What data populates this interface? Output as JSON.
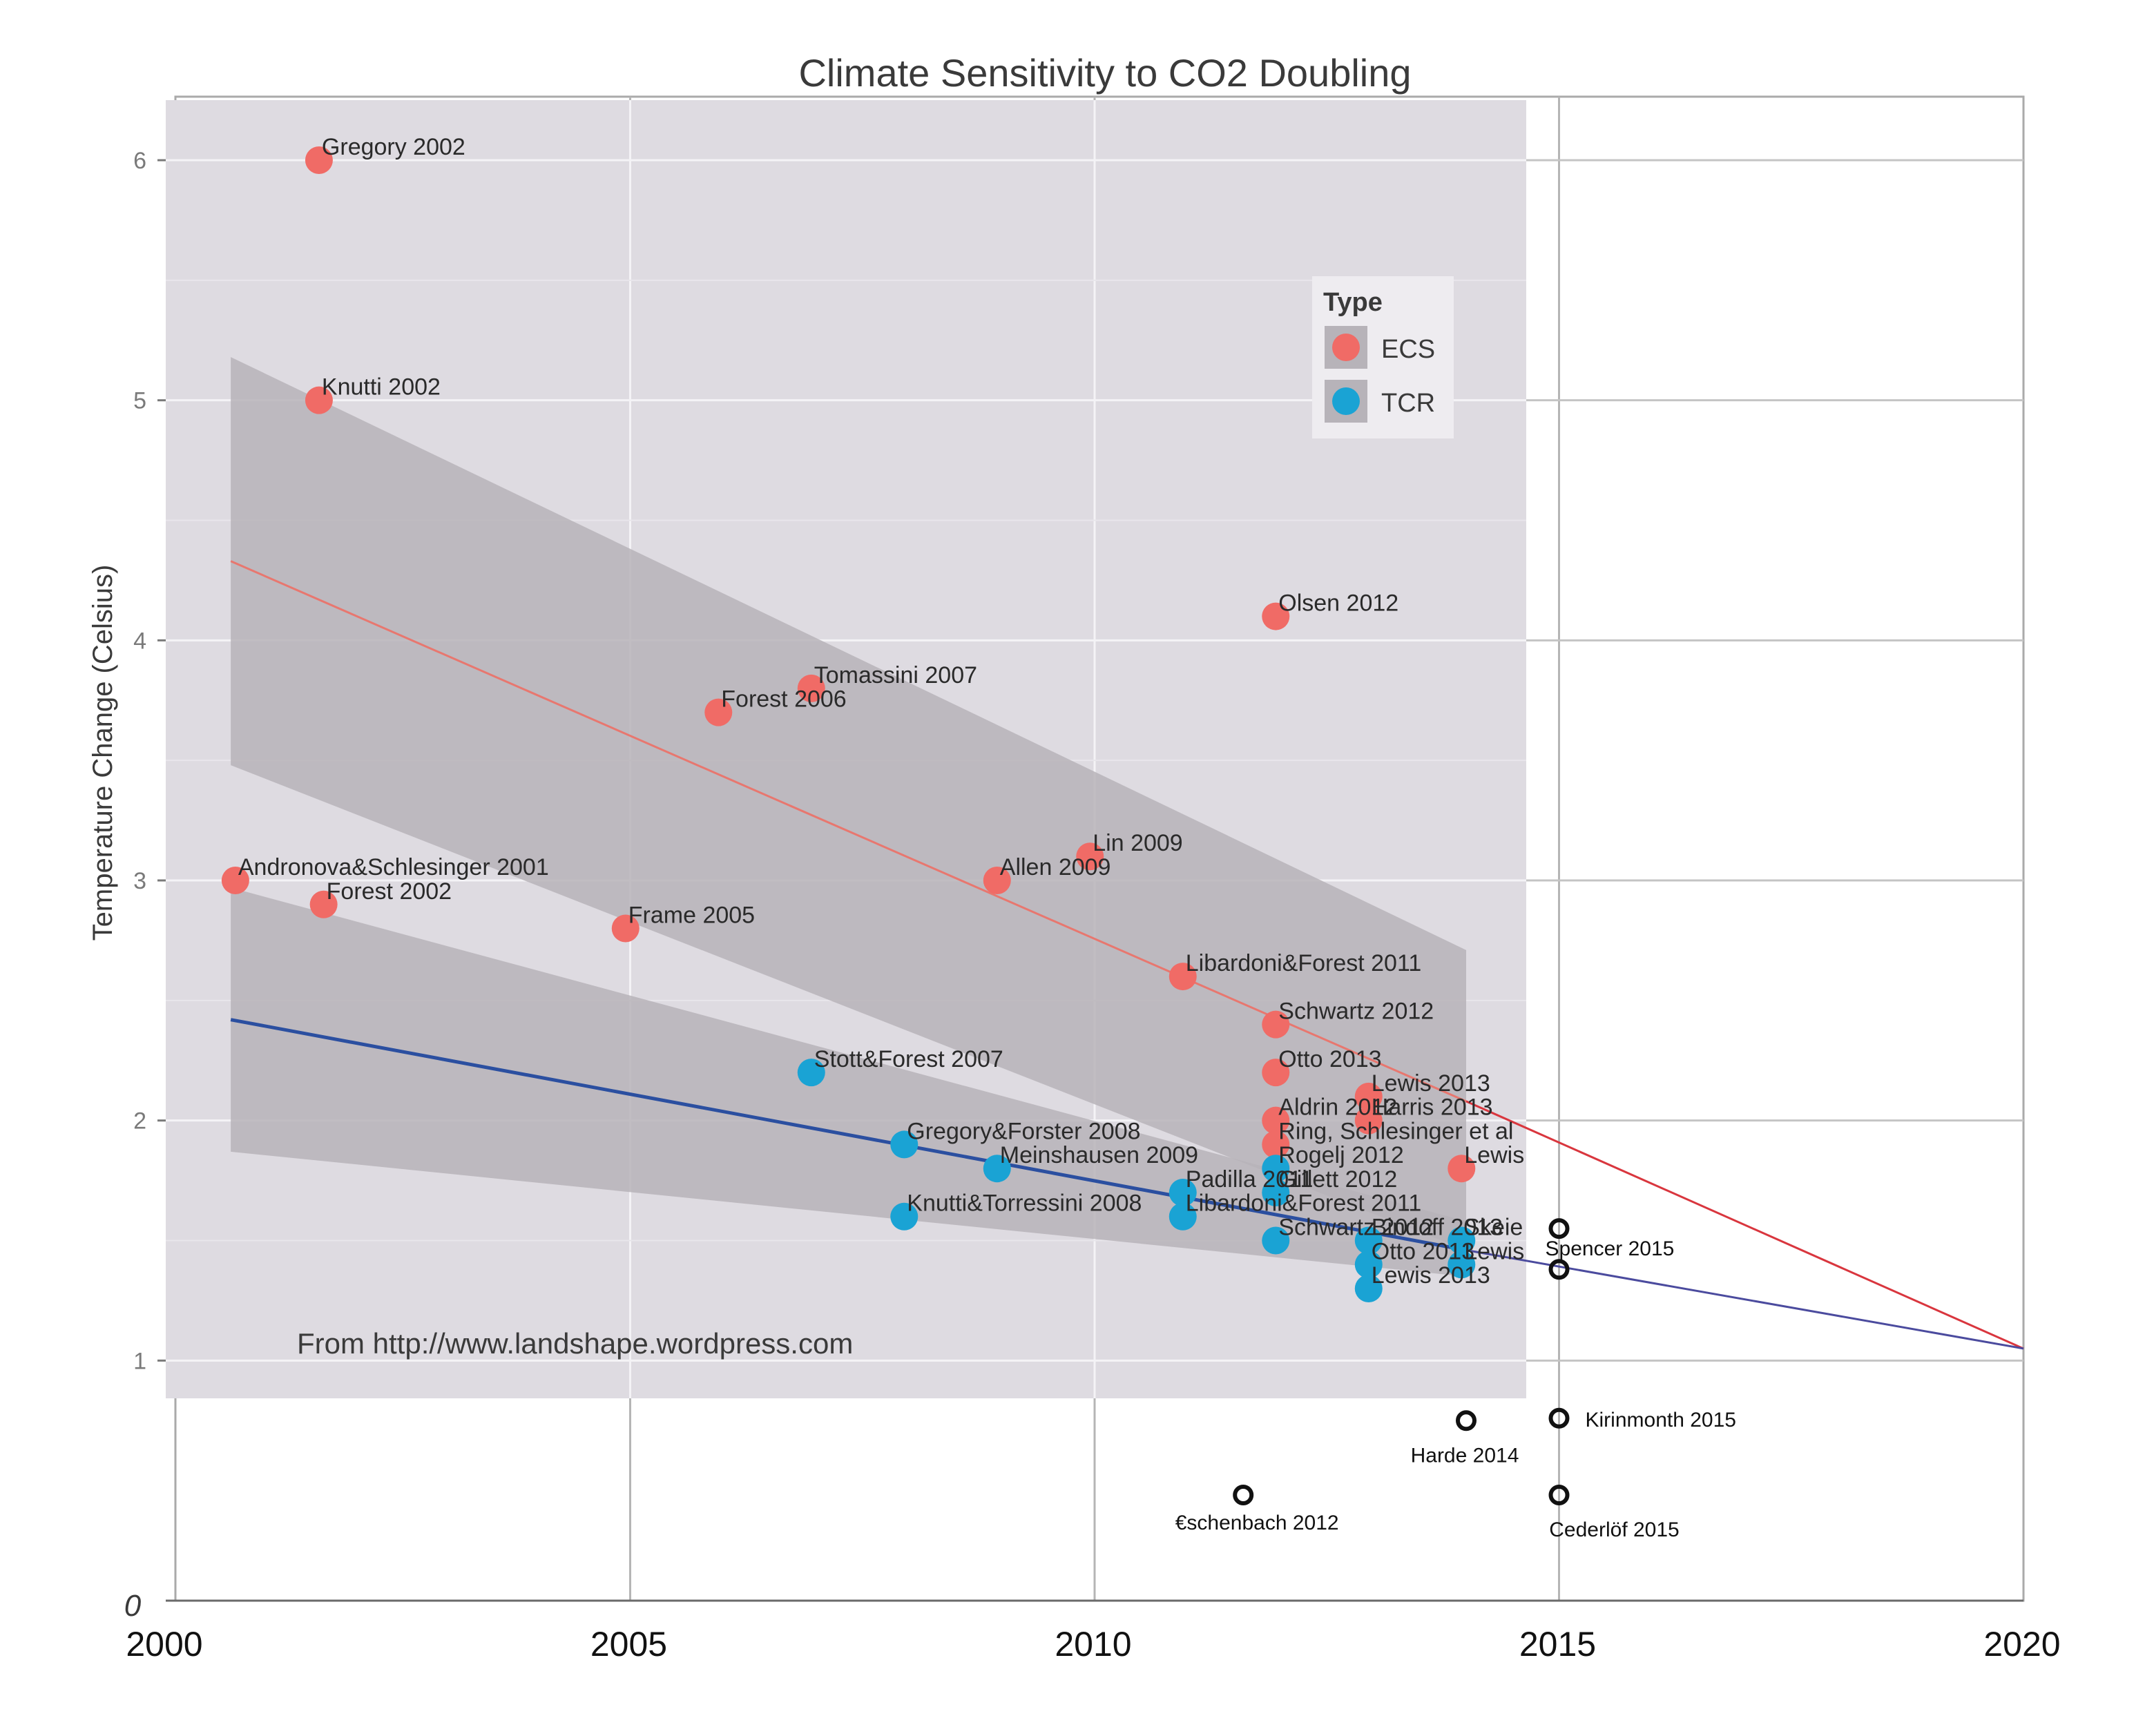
{
  "chart_data": {
    "type": "scatter",
    "title": "Climate Sensitivity to CO2 Doubling",
    "xlabel": "",
    "ylabel": "Temperature Change (Celsius)",
    "xlim": [
      2000,
      2020
    ],
    "ylim": [
      0,
      6.25
    ],
    "x_ticks": [
      "2000",
      "2005",
      "2010",
      "2015",
      "2020"
    ],
    "y_ticks": [
      "1",
      "2",
      "3",
      "4",
      "5",
      "6"
    ],
    "hand_y_zero": "0",
    "legend": {
      "title": "Type",
      "position": "top-right",
      "entries": [
        {
          "label": "ECS",
          "color": "#f06b66"
        },
        {
          "label": "TCR",
          "color": "#1aa3d4"
        }
      ]
    },
    "credit": "From http://www.landshape.wordpress.com",
    "colors": {
      "ecs": "#f06b66",
      "tcr": "#1aa3d4",
      "ecs_fit": "#e8776f",
      "tcr_fit": "#2b4fa0",
      "ecs_ext": "#d9363e",
      "tcr_ext": "#4b4b9e",
      "panel": "#dedbe1",
      "band": "#b7b3b9",
      "grid": "#f4f3f6"
    },
    "series": [
      {
        "name": "ECS",
        "points": [
          {
            "x": 2000.75,
            "y": 3.0,
            "label": "Andronova&Schlesinger 2001"
          },
          {
            "x": 2001.65,
            "y": 6.0,
            "label": "Gregory 2002"
          },
          {
            "x": 2001.65,
            "y": 5.0,
            "label": "Knutti 2002"
          },
          {
            "x": 2001.7,
            "y": 2.9,
            "label": "Forest 2002"
          },
          {
            "x": 2004.95,
            "y": 2.8,
            "label": "Frame 2005"
          },
          {
            "x": 2005.95,
            "y": 3.7,
            "label": "Forest 2006"
          },
          {
            "x": 2006.95,
            "y": 3.8,
            "label": "Tomassini 2007"
          },
          {
            "x": 2008.95,
            "y": 3.0,
            "label": "Allen 2009"
          },
          {
            "x": 2009.95,
            "y": 3.1,
            "label": "Lin 2009"
          },
          {
            "x": 2010.95,
            "y": 2.6,
            "label": "Libardoni&Forest 2011"
          },
          {
            "x": 2011.95,
            "y": 4.1,
            "label": "Olsen 2012"
          },
          {
            "x": 2011.95,
            "y": 2.4,
            "label": "Schwartz 2012"
          },
          {
            "x": 2011.95,
            "y": 2.2,
            "label": "Otto 2013"
          },
          {
            "x": 2011.95,
            "y": 2.0,
            "label": "Aldrin 2012"
          },
          {
            "x": 2011.95,
            "y": 1.9,
            "label": "Ring, Schlesinger et al"
          },
          {
            "x": 2012.95,
            "y": 2.1,
            "label": "Lewis 2013"
          },
          {
            "x": 2012.95,
            "y": 2.0,
            "label": "Harris 2013"
          },
          {
            "x": 2013.95,
            "y": 1.8,
            "label": "Lewis"
          }
        ]
      },
      {
        "name": "TCR",
        "points": [
          {
            "x": 2006.95,
            "y": 2.2,
            "label": "Stott&Forest 2007"
          },
          {
            "x": 2007.95,
            "y": 1.9,
            "label": "Gregory&Forster 2008"
          },
          {
            "x": 2008.95,
            "y": 1.8,
            "label": "Meinshausen 2009"
          },
          {
            "x": 2007.95,
            "y": 1.6,
            "label": "Knutti&Torressini 2008"
          },
          {
            "x": 2010.95,
            "y": 1.7,
            "label": "Padilla 2011"
          },
          {
            "x": 2010.95,
            "y": 1.6,
            "label": "Libardoni&Forest 2011"
          },
          {
            "x": 2011.95,
            "y": 1.8,
            "label": "Rogelj 2012"
          },
          {
            "x": 2011.95,
            "y": 1.7,
            "label": "Gillett 2012"
          },
          {
            "x": 2011.95,
            "y": 1.5,
            "label": "Schwartz 2012"
          },
          {
            "x": 2012.95,
            "y": 1.5,
            "label": "Bindoff 2013"
          },
          {
            "x": 2012.95,
            "y": 1.4,
            "label": "Otto 2013"
          },
          {
            "x": 2012.95,
            "y": 1.3,
            "label": "Lewis 2013"
          },
          {
            "x": 2013.95,
            "y": 1.5,
            "label": "Skeie"
          },
          {
            "x": 2013.95,
            "y": 1.4,
            "label": "Lewis"
          }
        ]
      },
      {
        "name": "Hand-drawn",
        "points": [
          {
            "x": 2015.0,
            "y": 1.55,
            "label": ""
          },
          {
            "x": 2015.0,
            "y": 1.38,
            "label": "Spencer 2015"
          },
          {
            "x": 2014.0,
            "y": 0.75,
            "label": "Harde  2014"
          },
          {
            "x": 2015.0,
            "y": 0.76,
            "label": "Kirinmonth  2015"
          },
          {
            "x": 2011.6,
            "y": 0.44,
            "label": "€schenbach 2012"
          },
          {
            "x": 2015.0,
            "y": 0.44,
            "label": "Cederlöf 2015"
          }
        ]
      }
    ],
    "fit_lines": [
      {
        "name": "ECS trend",
        "x": [
          2000.7,
          2014.0
        ],
        "y": [
          4.33,
          2.08
        ]
      },
      {
        "name": "TCR trend",
        "x": [
          2000.7,
          2014.0
        ],
        "y": [
          2.42,
          1.46
        ]
      }
    ],
    "confidence_bands": [
      {
        "name": "ECS band",
        "x": [
          2000.7,
          2014.0
        ],
        "upper": [
          5.18,
          2.71
        ],
        "lower": [
          3.48,
          1.46
        ]
      },
      {
        "name": "TCR band",
        "x": [
          2000.7,
          2014.0
        ],
        "upper": [
          2.97,
          1.58
        ],
        "lower": [
          1.87,
          1.35
        ]
      }
    ],
    "extensions": [
      {
        "name": "ECS extension",
        "x": [
          2014.0,
          2020.0
        ],
        "y": [
          2.08,
          1.05
        ]
      },
      {
        "name": "TCR extension",
        "x": [
          2014.0,
          2020.0
        ],
        "y": [
          1.46,
          1.05
        ]
      }
    ]
  }
}
